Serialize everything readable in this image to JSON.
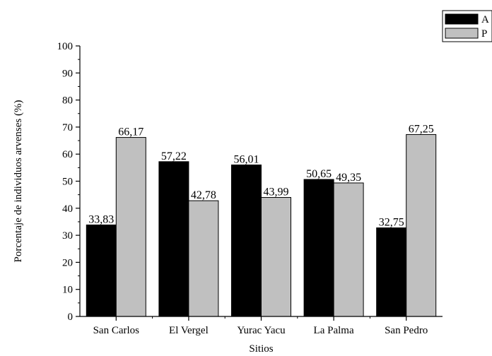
{
  "chart_data": {
    "type": "bar",
    "xlabel": "Sitios",
    "ylabel": "Porcentaje de individuos arvenses (%)",
    "categories": [
      "San Carlos",
      "El Vergel",
      "Yurac Yacu",
      "La Palma",
      "San Pedro"
    ],
    "series": [
      {
        "name": "A",
        "values": [
          33.83,
          57.22,
          56.01,
          50.65,
          32.75
        ],
        "labels": [
          "33,83",
          "57,22",
          "56,01",
          "50,65",
          "32,75"
        ],
        "color": "#000000"
      },
      {
        "name": "P",
        "values": [
          66.17,
          42.78,
          43.99,
          49.35,
          67.25
        ],
        "labels": [
          "66,17",
          "42,78",
          "43,99",
          "49,35",
          "67,25"
        ],
        "color": "#c0c0c0"
      }
    ],
    "ylim": [
      0,
      100
    ],
    "yticks": [
      0,
      10,
      20,
      30,
      40,
      50,
      60,
      70,
      80,
      90,
      100
    ],
    "grid": false,
    "legend_position": "top-right"
  }
}
